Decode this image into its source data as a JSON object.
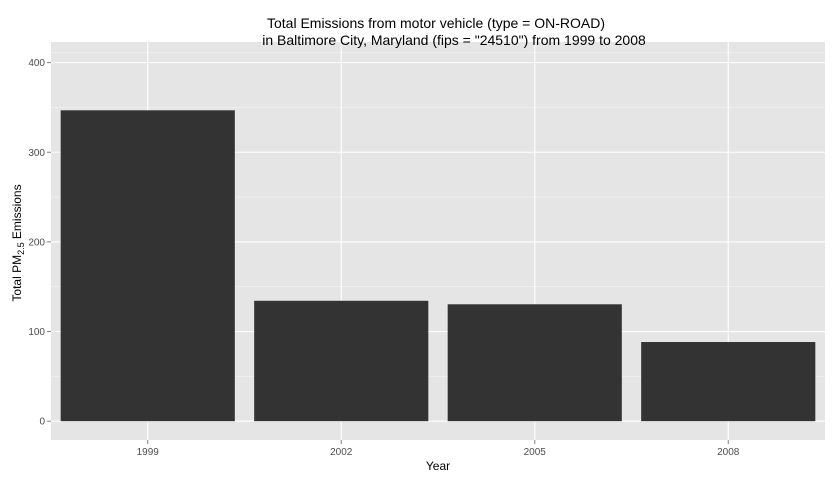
{
  "chart_data": {
    "type": "bar",
    "title_line1": "Total Emissions from motor vehicle (type = ON-ROAD)",
    "title_line2": "in Baltimore City, Maryland (fips = \"24510\") from 1999 to 2008",
    "xlabel": "Year",
    "ylabel_prefix": "Total PM",
    "ylabel_subscript": "2.5",
    "ylabel_suffix": " Emissions",
    "categories": [
      "1999",
      "2002",
      "2005",
      "2008"
    ],
    "values": [
      346.8,
      134.3,
      130.4,
      88.3
    ],
    "ylim": [
      -21,
      423
    ],
    "yticks": [
      0,
      100,
      200,
      300,
      400
    ],
    "grid": true,
    "legend": "none",
    "colors": {
      "panel": "#e5e5e5",
      "grid": "#ffffff",
      "bar": "#333333"
    }
  }
}
